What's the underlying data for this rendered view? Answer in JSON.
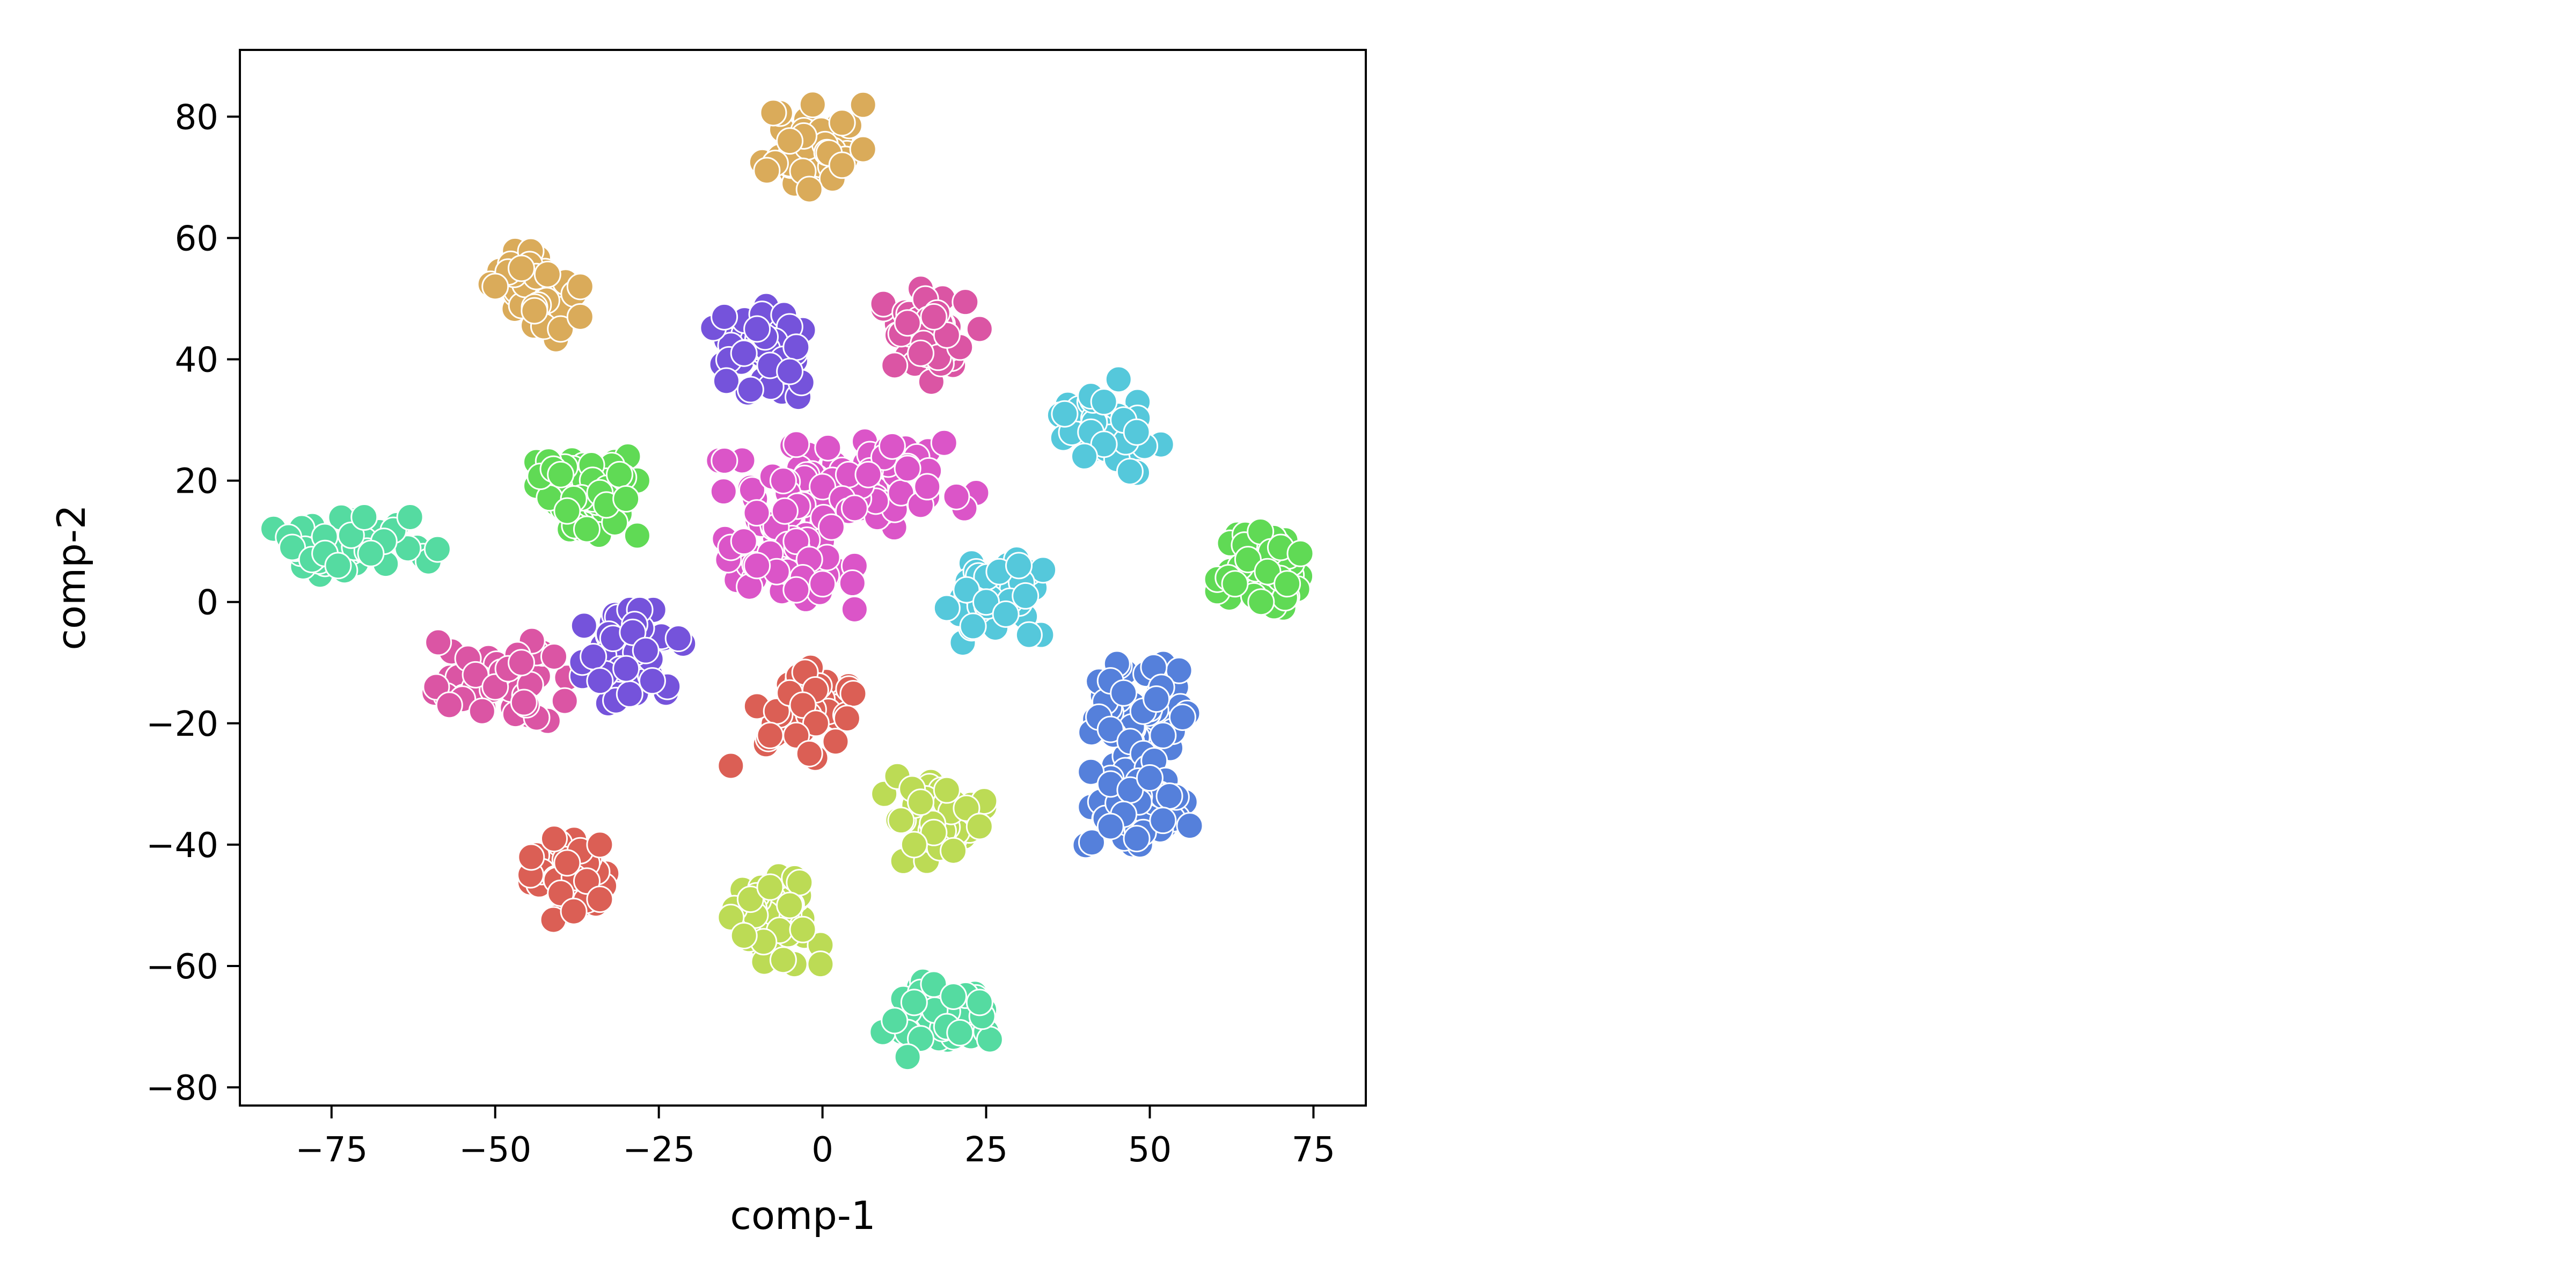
{
  "chart_data": {
    "type": "scatter",
    "title": "",
    "xlabel": "comp-1",
    "ylabel": "comp-2",
    "xlim": [
      -89,
      83
    ],
    "ylim": [
      -83,
      91
    ],
    "x_ticks": [
      -75,
      -50,
      -25,
      0,
      25,
      50,
      75
    ],
    "y_ticks": [
      -80,
      -60,
      -40,
      -20,
      0,
      20,
      40,
      60,
      80
    ],
    "x_tick_labels": [
      "−75",
      "−50",
      "−25",
      "0",
      "25",
      "50",
      "75"
    ],
    "y_tick_labels": [
      "−80",
      "−60",
      "−40",
      "−20",
      "0",
      "20",
      "40",
      "60",
      "80"
    ],
    "grid": false,
    "legend": "none",
    "marker_edge_color": "#ffffff",
    "clusters": [
      {
        "color": "#daab5a",
        "cx": -1.5,
        "cy": 75,
        "n": 48,
        "seed": 11,
        "points": [
          [
            -1.5,
            82
          ],
          [
            3,
            79
          ],
          [
            -5,
            76
          ],
          [
            1,
            74
          ],
          [
            -3,
            71
          ],
          [
            3,
            72
          ],
          [
            -2,
            68
          ]
        ]
      },
      {
        "color": "#daab5a",
        "cx": -43,
        "cy": 51,
        "n": 42,
        "seed": 12,
        "points": [
          [
            -50,
            52
          ],
          [
            -46,
            55
          ],
          [
            -42,
            54
          ],
          [
            -37,
            52
          ],
          [
            -44,
            48
          ],
          [
            -40,
            45
          ],
          [
            -37,
            47
          ]
        ]
      },
      {
        "color": "#7553db",
        "cx": -9,
        "cy": 41.5,
        "n": 48,
        "seed": 13,
        "points": [
          [
            -15,
            47
          ],
          [
            -10,
            45
          ],
          [
            -12,
            41
          ],
          [
            -6,
            40
          ],
          [
            -4,
            42
          ],
          [
            -8,
            39
          ],
          [
            -11,
            35
          ],
          [
            -5,
            38
          ]
        ]
      },
      {
        "color": "#db55a4",
        "cx": 17,
        "cy": 44,
        "n": 48,
        "seed": 14,
        "points": [
          [
            11,
            39
          ],
          [
            15,
            41
          ],
          [
            21,
            42
          ],
          [
            19,
            44
          ],
          [
            24,
            45
          ],
          [
            17,
            47
          ],
          [
            13,
            46
          ]
        ]
      },
      {
        "color": "#55c8db",
        "cx": 44,
        "cy": 29,
        "n": 48,
        "seed": 15,
        "points": [
          [
            37,
            31
          ],
          [
            41,
            28
          ],
          [
            43,
            26
          ],
          [
            46,
            30
          ],
          [
            48,
            28
          ],
          [
            43,
            33
          ],
          [
            40,
            24
          ]
        ]
      },
      {
        "color": "#db55c8",
        "cx": 4,
        "cy": 20,
        "n": 65,
        "seed": 16,
        "sx": 9,
        "sy": 3.5,
        "points": [
          [
            -4,
            26
          ],
          [
            -6,
            20
          ],
          [
            0,
            19
          ],
          [
            4,
            21
          ],
          [
            3,
            17
          ],
          [
            7,
            21
          ],
          [
            12,
            18
          ],
          [
            15,
            16
          ],
          [
            16,
            19
          ],
          [
            13,
            22
          ],
          [
            -3,
            16
          ],
          [
            4,
            15
          ]
        ]
      },
      {
        "color": "#db55c8",
        "cx": -5,
        "cy": 7,
        "n": 55,
        "seed": 17,
        "sx": 4.5,
        "sy": 4,
        "points": [
          [
            -14,
            9
          ],
          [
            -12,
            10
          ],
          [
            -8,
            8
          ],
          [
            -4,
            10
          ],
          [
            -2,
            7
          ],
          [
            -7,
            5
          ],
          [
            -3,
            4
          ],
          [
            -4,
            2
          ],
          [
            0,
            3
          ],
          [
            -10,
            6
          ]
        ]
      },
      {
        "color": "#60da55",
        "cx": -36,
        "cy": 18,
        "n": 50,
        "seed": 18,
        "points": [
          [
            -40,
            21
          ],
          [
            -38,
            17
          ],
          [
            -34,
            18
          ],
          [
            -31,
            21
          ],
          [
            -33,
            16
          ],
          [
            -39,
            15
          ],
          [
            -36,
            12
          ],
          [
            -30,
            17
          ]
        ]
      },
      {
        "color": "#55dba1",
        "cx": -72,
        "cy": 10,
        "n": 45,
        "seed": 19,
        "sx": 6,
        "sy": 2.5,
        "points": [
          [
            -81,
            9
          ],
          [
            -78,
            7
          ],
          [
            -76,
            8
          ],
          [
            -74,
            6
          ],
          [
            -72,
            11
          ],
          [
            -70,
            14
          ],
          [
            -67,
            10
          ],
          [
            -69,
            8
          ],
          [
            -63,
            14
          ]
        ]
      },
      {
        "color": "#55c8db",
        "cx": 26,
        "cy": 1,
        "n": 48,
        "seed": 20,
        "points": [
          [
            19,
            -1
          ],
          [
            22,
            2
          ],
          [
            25,
            0
          ],
          [
            28,
            -2
          ],
          [
            31,
            1
          ],
          [
            27,
            5
          ],
          [
            23,
            -4
          ],
          [
            30,
            6
          ]
        ]
      },
      {
        "color": "#60da55",
        "cx": 68,
        "cy": 5,
        "n": 45,
        "seed": 21,
        "points": [
          [
            62,
            4
          ],
          [
            65,
            7
          ],
          [
            68,
            5
          ],
          [
            70,
            9
          ],
          [
            73,
            8
          ],
          [
            67,
            0
          ],
          [
            71,
            3
          ],
          [
            63,
            3
          ]
        ]
      },
      {
        "color": "#db55a4",
        "cx": -50,
        "cy": -13,
        "n": 48,
        "seed": 22,
        "sx": 5,
        "sy": 3,
        "points": [
          [
            -59,
            -14
          ],
          [
            -55,
            -16
          ],
          [
            -53,
            -12
          ],
          [
            -50,
            -14
          ],
          [
            -48,
            -11
          ],
          [
            -46,
            -10
          ],
          [
            -41,
            -9
          ],
          [
            -57,
            -17
          ],
          [
            -52,
            -18
          ]
        ]
      },
      {
        "color": "#7553db",
        "cx": -29,
        "cy": -9,
        "n": 45,
        "seed": 23,
        "points": [
          [
            -35,
            -9
          ],
          [
            -32,
            -6
          ],
          [
            -29,
            -5
          ],
          [
            -27,
            -8
          ],
          [
            -30,
            -11
          ],
          [
            -26,
            -13
          ],
          [
            -34,
            -13
          ],
          [
            -22,
            -6
          ]
        ]
      },
      {
        "color": "#db5f55",
        "cx": -3,
        "cy": -18,
        "n": 48,
        "seed": 24,
        "points": [
          [
            -7,
            -18
          ],
          [
            -5,
            -15
          ],
          [
            -3,
            -17
          ],
          [
            -1,
            -20
          ],
          [
            -4,
            -22
          ],
          [
            -8,
            -22
          ],
          [
            -2,
            -25
          ],
          [
            2,
            -23
          ],
          [
            -14,
            -27
          ]
        ]
      },
      {
        "color": "#5580db",
        "cx": 48,
        "cy": -19,
        "n": 55,
        "seed": 25,
        "sx": 3.5,
        "sy": 4,
        "points": [
          [
            44,
            -13
          ],
          [
            46,
            -15
          ],
          [
            49,
            -18
          ],
          [
            51,
            -16
          ],
          [
            44,
            -21
          ],
          [
            47,
            -23
          ],
          [
            52,
            -22
          ],
          [
            55,
            -19
          ],
          [
            49,
            -25
          ]
        ]
      },
      {
        "color": "#5580db",
        "cx": 49,
        "cy": -33,
        "n": 60,
        "seed": 26,
        "sx": 4,
        "sy": 3.5,
        "points": [
          [
            41,
            -28
          ],
          [
            44,
            -30
          ],
          [
            47,
            -31
          ],
          [
            50,
            -29
          ],
          [
            53,
            -32
          ],
          [
            46,
            -35
          ],
          [
            49,
            -38
          ],
          [
            52,
            -36
          ],
          [
            44,
            -37
          ],
          [
            48,
            -39
          ]
        ]
      },
      {
        "color": "#bcdb55",
        "cx": 17,
        "cy": -35,
        "n": 48,
        "seed": 27,
        "points": [
          [
            12,
            -36
          ],
          [
            15,
            -33
          ],
          [
            19,
            -31
          ],
          [
            22,
            -34
          ],
          [
            24,
            -37
          ],
          [
            17,
            -38
          ],
          [
            14,
            -40
          ],
          [
            20,
            -41
          ]
        ]
      },
      {
        "color": "#db5f55",
        "cx": -38,
        "cy": -45,
        "n": 45,
        "seed": 28,
        "sx": 3,
        "sy": 3.5,
        "points": [
          [
            -41,
            -39
          ],
          [
            -37,
            -41
          ],
          [
            -34,
            -40
          ],
          [
            -39,
            -43
          ],
          [
            -36,
            -46
          ],
          [
            -40,
            -48
          ],
          [
            -34,
            -49
          ],
          [
            -38,
            -51
          ]
        ]
      },
      {
        "color": "#bcdb55",
        "cx": -8,
        "cy": -52,
        "n": 48,
        "seed": 29,
        "points": [
          [
            -14,
            -52
          ],
          [
            -11,
            -49
          ],
          [
            -8,
            -47
          ],
          [
            -5,
            -50
          ],
          [
            -3,
            -54
          ],
          [
            -9,
            -56
          ],
          [
            -6,
            -59
          ],
          [
            -12,
            -55
          ]
        ]
      },
      {
        "color": "#55dba1",
        "cx": 18,
        "cy": -68,
        "n": 45,
        "seed": 30,
        "sx": 4,
        "sy": 3,
        "points": [
          [
            11,
            -69
          ],
          [
            14,
            -66
          ],
          [
            17,
            -63
          ],
          [
            20,
            -65
          ],
          [
            24,
            -66
          ],
          [
            19,
            -70
          ],
          [
            15,
            -72
          ],
          [
            13,
            -75
          ],
          [
            21,
            -71
          ]
        ]
      }
    ]
  }
}
